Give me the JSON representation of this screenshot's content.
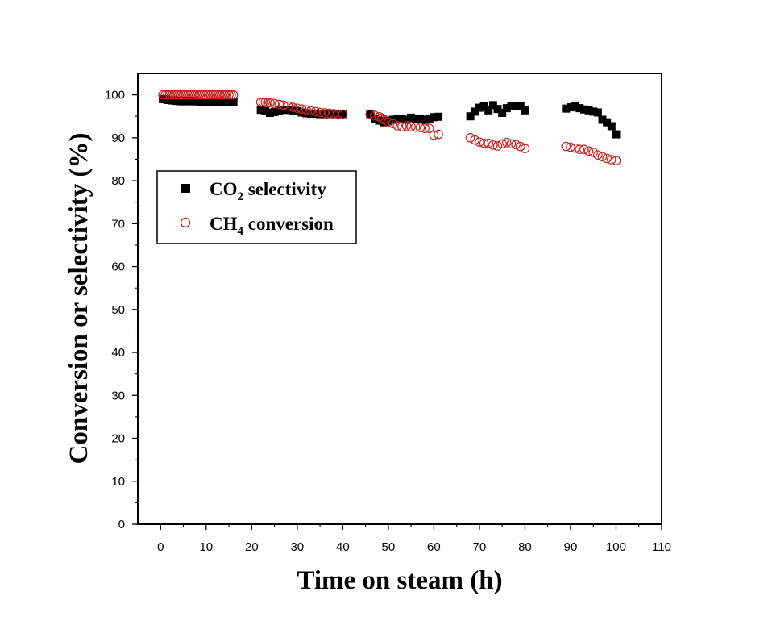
{
  "chart_data": {
    "type": "scatter",
    "xlabel": "Time on steam (h)",
    "ylabel": "Conversion or selectivity (%)",
    "xlim": [
      -5,
      110
    ],
    "ylim": [
      0,
      105
    ],
    "xticks": [
      0,
      10,
      20,
      30,
      40,
      50,
      60,
      70,
      80,
      90,
      100,
      110
    ],
    "yticks": [
      0,
      10,
      20,
      30,
      40,
      50,
      60,
      70,
      80,
      90,
      100
    ],
    "grid": false,
    "legend_position": "left",
    "legend": {
      "co2": {
        "prefix": "CO",
        "sub": "2",
        "suffix": " selectivity"
      },
      "ch4": {
        "prefix": "CH",
        "sub": "4",
        "suffix": " conversion"
      }
    },
    "series": [
      {
        "name": "CO2 selectivity",
        "marker": "filled-square",
        "color": "#000000",
        "x": [
          0.5,
          1,
          1.5,
          2,
          2.5,
          3,
          3.5,
          4,
          4.5,
          5,
          5.5,
          6,
          6.5,
          7,
          7.5,
          8,
          8.5,
          9,
          9.5,
          10,
          10.5,
          11,
          11.5,
          12,
          12.5,
          13,
          13.5,
          14,
          14.5,
          15,
          15.5,
          16,
          22,
          23,
          24,
          25,
          26,
          27,
          28,
          29,
          30,
          31,
          32,
          33,
          34,
          35,
          36,
          37,
          38,
          39,
          40,
          46,
          47,
          48,
          49,
          50,
          51,
          52,
          53,
          54,
          55,
          56,
          57,
          58,
          59,
          60,
          61,
          68,
          69,
          70,
          71,
          72,
          73,
          74,
          75,
          76,
          77,
          78,
          79,
          80,
          89,
          90,
          91,
          92,
          93,
          94,
          95,
          96,
          97,
          98,
          99,
          100
        ],
        "y": [
          99,
          99,
          98.8,
          98.8,
          98.7,
          98.7,
          98.6,
          98.6,
          98.5,
          98.6,
          98.5,
          98.6,
          98.5,
          98.6,
          98.5,
          98.5,
          98.5,
          98.4,
          98.4,
          98.4,
          98.4,
          98.5,
          98.4,
          98.5,
          98.5,
          98.4,
          98.5,
          98.4,
          98.5,
          98.4,
          98.4,
          98.4,
          96.5,
          96.2,
          95.8,
          96,
          96.3,
          96.5,
          96.5,
          96.3,
          96.2,
          95.9,
          95.7,
          95.6,
          95.6,
          95.5,
          95.5,
          95.5,
          95.5,
          95.5,
          95.5,
          95.5,
          94.5,
          94,
          93.6,
          94,
          94.2,
          94.4,
          94.3,
          94.2,
          94.7,
          94.4,
          94.5,
          94.2,
          94.5,
          94.8,
          94.9,
          95,
          96.1,
          97,
          97.4,
          96.4,
          97.6,
          96.7,
          95.8,
          96.9,
          97.4,
          97.4,
          97.5,
          96.4,
          96.8,
          97.1,
          97.5,
          96.9,
          96.6,
          96.4,
          96.1,
          95.9,
          94.2,
          93.6,
          92.7,
          90.8
        ]
      },
      {
        "name": "CH4 conversion",
        "marker": "open-circle",
        "color": "#cc2222",
        "x": [
          0.5,
          1,
          1.5,
          2,
          2.5,
          3,
          3.5,
          4,
          4.5,
          5,
          5.5,
          6,
          6.5,
          7,
          7.5,
          8,
          8.5,
          9,
          9.5,
          10,
          10.5,
          11,
          11.5,
          12,
          12.5,
          13,
          13.5,
          14,
          14.5,
          15,
          15.5,
          16,
          22,
          22.5,
          23,
          23.5,
          24,
          25,
          26,
          27,
          28,
          29,
          30,
          31,
          32,
          33,
          34,
          35,
          36,
          37,
          38,
          39,
          40,
          46,
          47,
          48,
          48.5,
          49,
          50,
          51,
          52,
          53,
          54,
          55,
          56,
          57,
          58,
          59,
          60,
          61,
          68,
          69,
          70,
          71,
          72,
          73,
          74,
          75,
          76,
          77,
          78,
          79,
          80,
          89,
          90,
          91,
          92,
          93,
          94,
          95,
          96,
          97,
          98,
          99,
          100
        ],
        "y": [
          100,
          100,
          100,
          100,
          100,
          100,
          100,
          100,
          100,
          100,
          100,
          100,
          100,
          100,
          100,
          100,
          100,
          100,
          100,
          100,
          100,
          100,
          100,
          100,
          100,
          100,
          100,
          100,
          100,
          100,
          100,
          100,
          98.3,
          98.3,
          98.3,
          98.2,
          98.2,
          98,
          97.8,
          97.6,
          97.4,
          97.1,
          96.9,
          96.7,
          96.5,
          96.3,
          96.1,
          95.9,
          95.8,
          95.7,
          95.6,
          95.5,
          95.5,
          95.5,
          95.2,
          94.9,
          94.6,
          94.3,
          93.7,
          93.3,
          92.8,
          92.6,
          92.8,
          92.6,
          92.5,
          92.4,
          92.2,
          92.2,
          90.6,
          90.8,
          90,
          89.5,
          89,
          88.7,
          88.7,
          88.3,
          88.1,
          88.6,
          88.9,
          88.6,
          88.4,
          88,
          87.5,
          88,
          87.8,
          87.6,
          87.3,
          87.3,
          86.9,
          86.6,
          86,
          85.6,
          85.2,
          84.9,
          84.7
        ]
      }
    ]
  }
}
